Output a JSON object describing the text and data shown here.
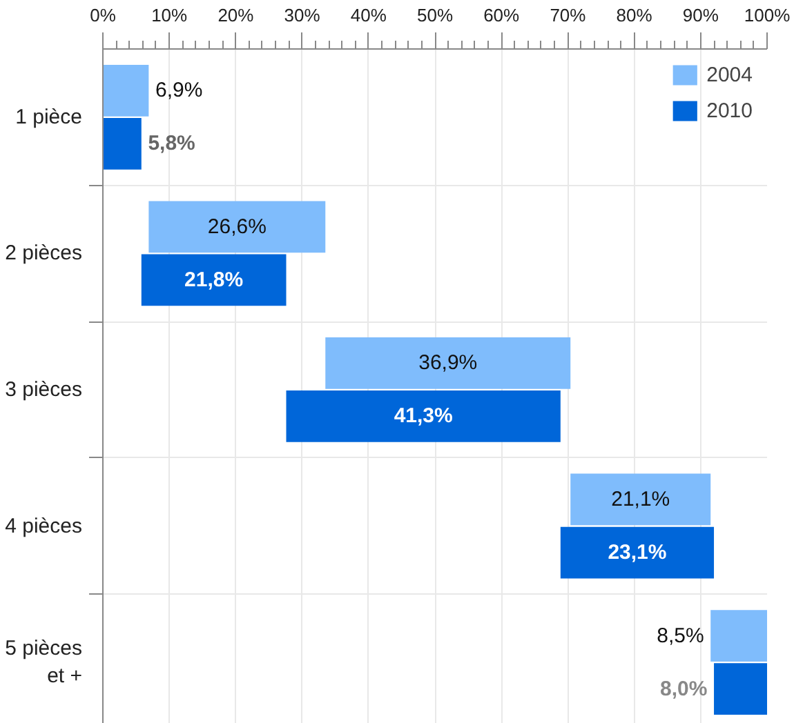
{
  "chart_data": {
    "type": "bar",
    "orientation": "horizontal",
    "categories": [
      "1 pièce",
      "2 pièces",
      "3 pièces",
      "4 pièces",
      "5 pièces\net +"
    ],
    "series": [
      {
        "name": "2004",
        "color": "#7fbcfc",
        "values": [
          6.9,
          26.6,
          36.9,
          21.1,
          8.5
        ],
        "base": [
          0,
          6.9,
          33.5,
          70.4,
          91.5
        ],
        "value_labels": [
          "6,9%",
          "26,6%",
          "36,9%",
          "21,1%",
          "8,5%"
        ]
      },
      {
        "name": "2010",
        "color": "#0066d9",
        "values": [
          5.8,
          21.8,
          41.3,
          23.1,
          8.0
        ],
        "base": [
          0,
          5.8,
          27.6,
          68.9,
          92.0
        ],
        "value_labels": [
          "5,8%",
          "21,8%",
          "41,3%",
          "23,1%",
          "8,0%"
        ]
      }
    ],
    "xlim": [
      0,
      100
    ],
    "xticks": [
      {
        "value": 0,
        "label": "0%"
      },
      {
        "value": 10,
        "label": "10%"
      },
      {
        "value": 20,
        "label": "20%"
      },
      {
        "value": 30,
        "label": "30%"
      },
      {
        "value": 40,
        "label": "40%"
      },
      {
        "value": 50,
        "label": "50%"
      },
      {
        "value": 60,
        "label": "60%"
      },
      {
        "value": 70,
        "label": "70%"
      },
      {
        "value": 80,
        "label": "80%"
      },
      {
        "value": 90,
        "label": "90%"
      },
      {
        "value": 100,
        "label": "100%"
      }
    ],
    "grid": true,
    "legend": "top right"
  }
}
